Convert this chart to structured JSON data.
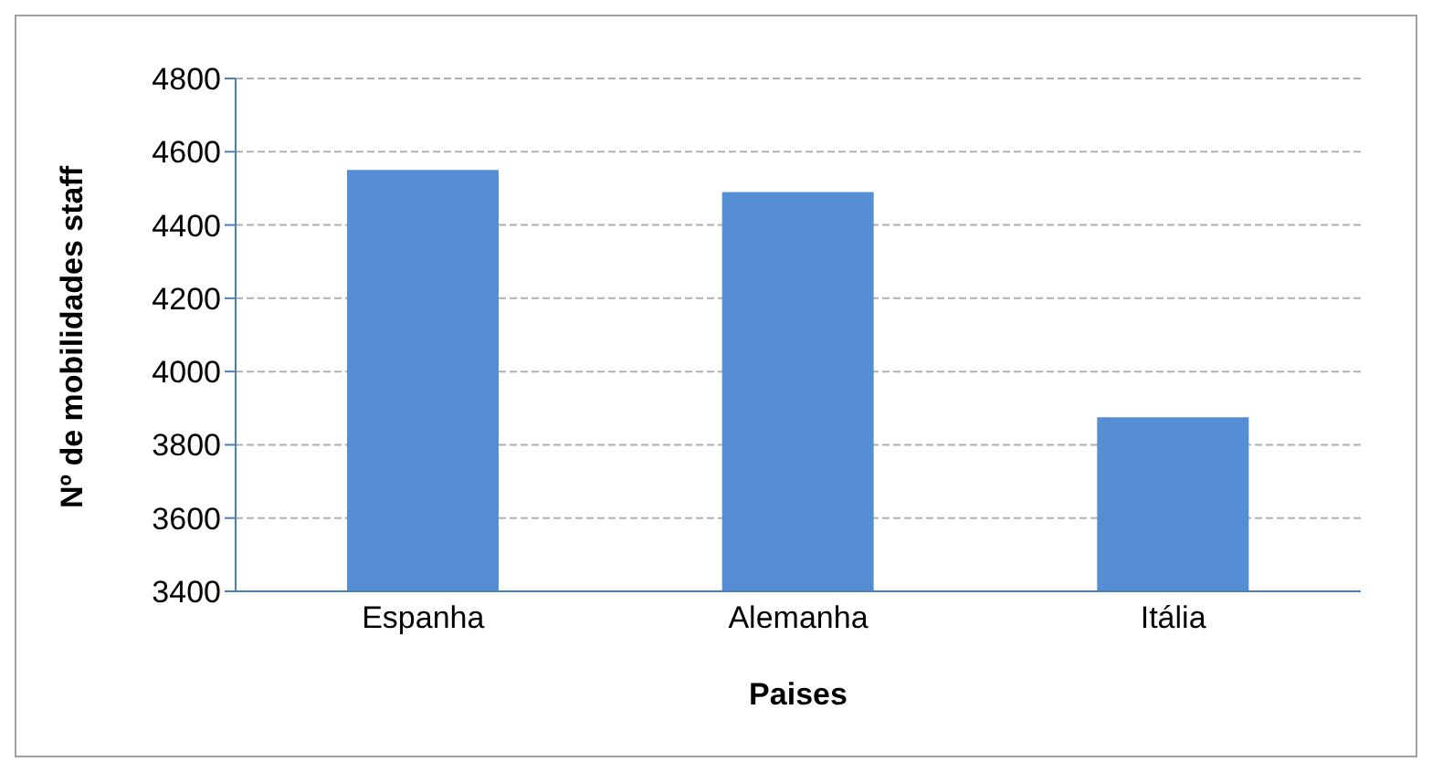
{
  "chart_data": {
    "type": "bar",
    "xlabel": "Paises",
    "ylabel": "Nº de mobilidades staff",
    "categories": [
      "Espanha",
      "Alemanha",
      "Itália"
    ],
    "values": [
      4550,
      4490,
      3875
    ],
    "color": "#558ed5",
    "ylim": [
      3400,
      4800
    ],
    "yticks": [
      3400,
      3600,
      3800,
      4000,
      4200,
      4400,
      4600,
      4800
    ],
    "grid": "y"
  }
}
